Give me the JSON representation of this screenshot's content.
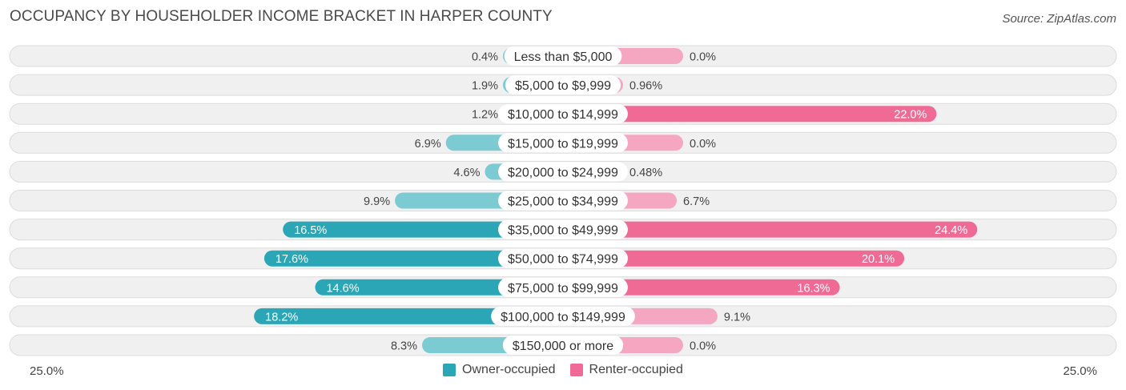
{
  "header": {
    "title": "OCCUPANCY BY HOUSEHOLDER INCOME BRACKET IN HARPER COUNTY",
    "source": "Source: ZipAtlas.com"
  },
  "axis": {
    "left_label": "25.0%",
    "right_label": "25.0%"
  },
  "legend": {
    "owner_label": "Owner-occupied",
    "renter_label": "Renter-occupied"
  },
  "colors": {
    "owner_dark": "#2ba6b6",
    "owner_light": "#7ccbd3",
    "renter_dark": "#f06a96",
    "renter_light": "#f5a7c1",
    "row_background": "#f0f0f0",
    "row_border": "#dcdcdc"
  },
  "chart_data": {
    "type": "bar",
    "orientation": "horizontal-diverging",
    "title": "OCCUPANCY BY HOUSEHOLDER INCOME BRACKET IN HARPER COUNTY",
    "categories": [
      "Less than $5,000",
      "$5,000 to $9,999",
      "$10,000 to $14,999",
      "$15,000 to $19,999",
      "$20,000 to $24,999",
      "$25,000 to $34,999",
      "$35,000 to $49,999",
      "$50,000 to $74,999",
      "$75,000 to $99,999",
      "$100,000 to $149,999",
      "$150,000 or more"
    ],
    "series": [
      {
        "name": "Owner-occupied",
        "values": [
          0.4,
          1.9,
          1.2,
          6.9,
          4.6,
          9.9,
          16.5,
          17.6,
          14.6,
          18.2,
          8.3
        ],
        "labels": [
          "0.4%",
          "1.9%",
          "1.2%",
          "6.9%",
          "4.6%",
          "9.9%",
          "16.5%",
          "17.6%",
          "14.6%",
          "18.2%",
          "8.3%"
        ]
      },
      {
        "name": "Renter-occupied",
        "values": [
          0.0,
          0.96,
          22.0,
          0.0,
          0.48,
          6.7,
          24.4,
          20.1,
          16.3,
          9.1,
          0.0
        ],
        "labels": [
          "0.0%",
          "0.96%",
          "22.0%",
          "0.0%",
          "0.48%",
          "6.7%",
          "24.4%",
          "20.1%",
          "16.3%",
          "9.1%",
          "0.0%"
        ]
      }
    ],
    "xlim": [
      -25,
      25
    ],
    "xlabel": "",
    "ylabel": "",
    "legend_position": "bottom-center",
    "grid": false
  }
}
